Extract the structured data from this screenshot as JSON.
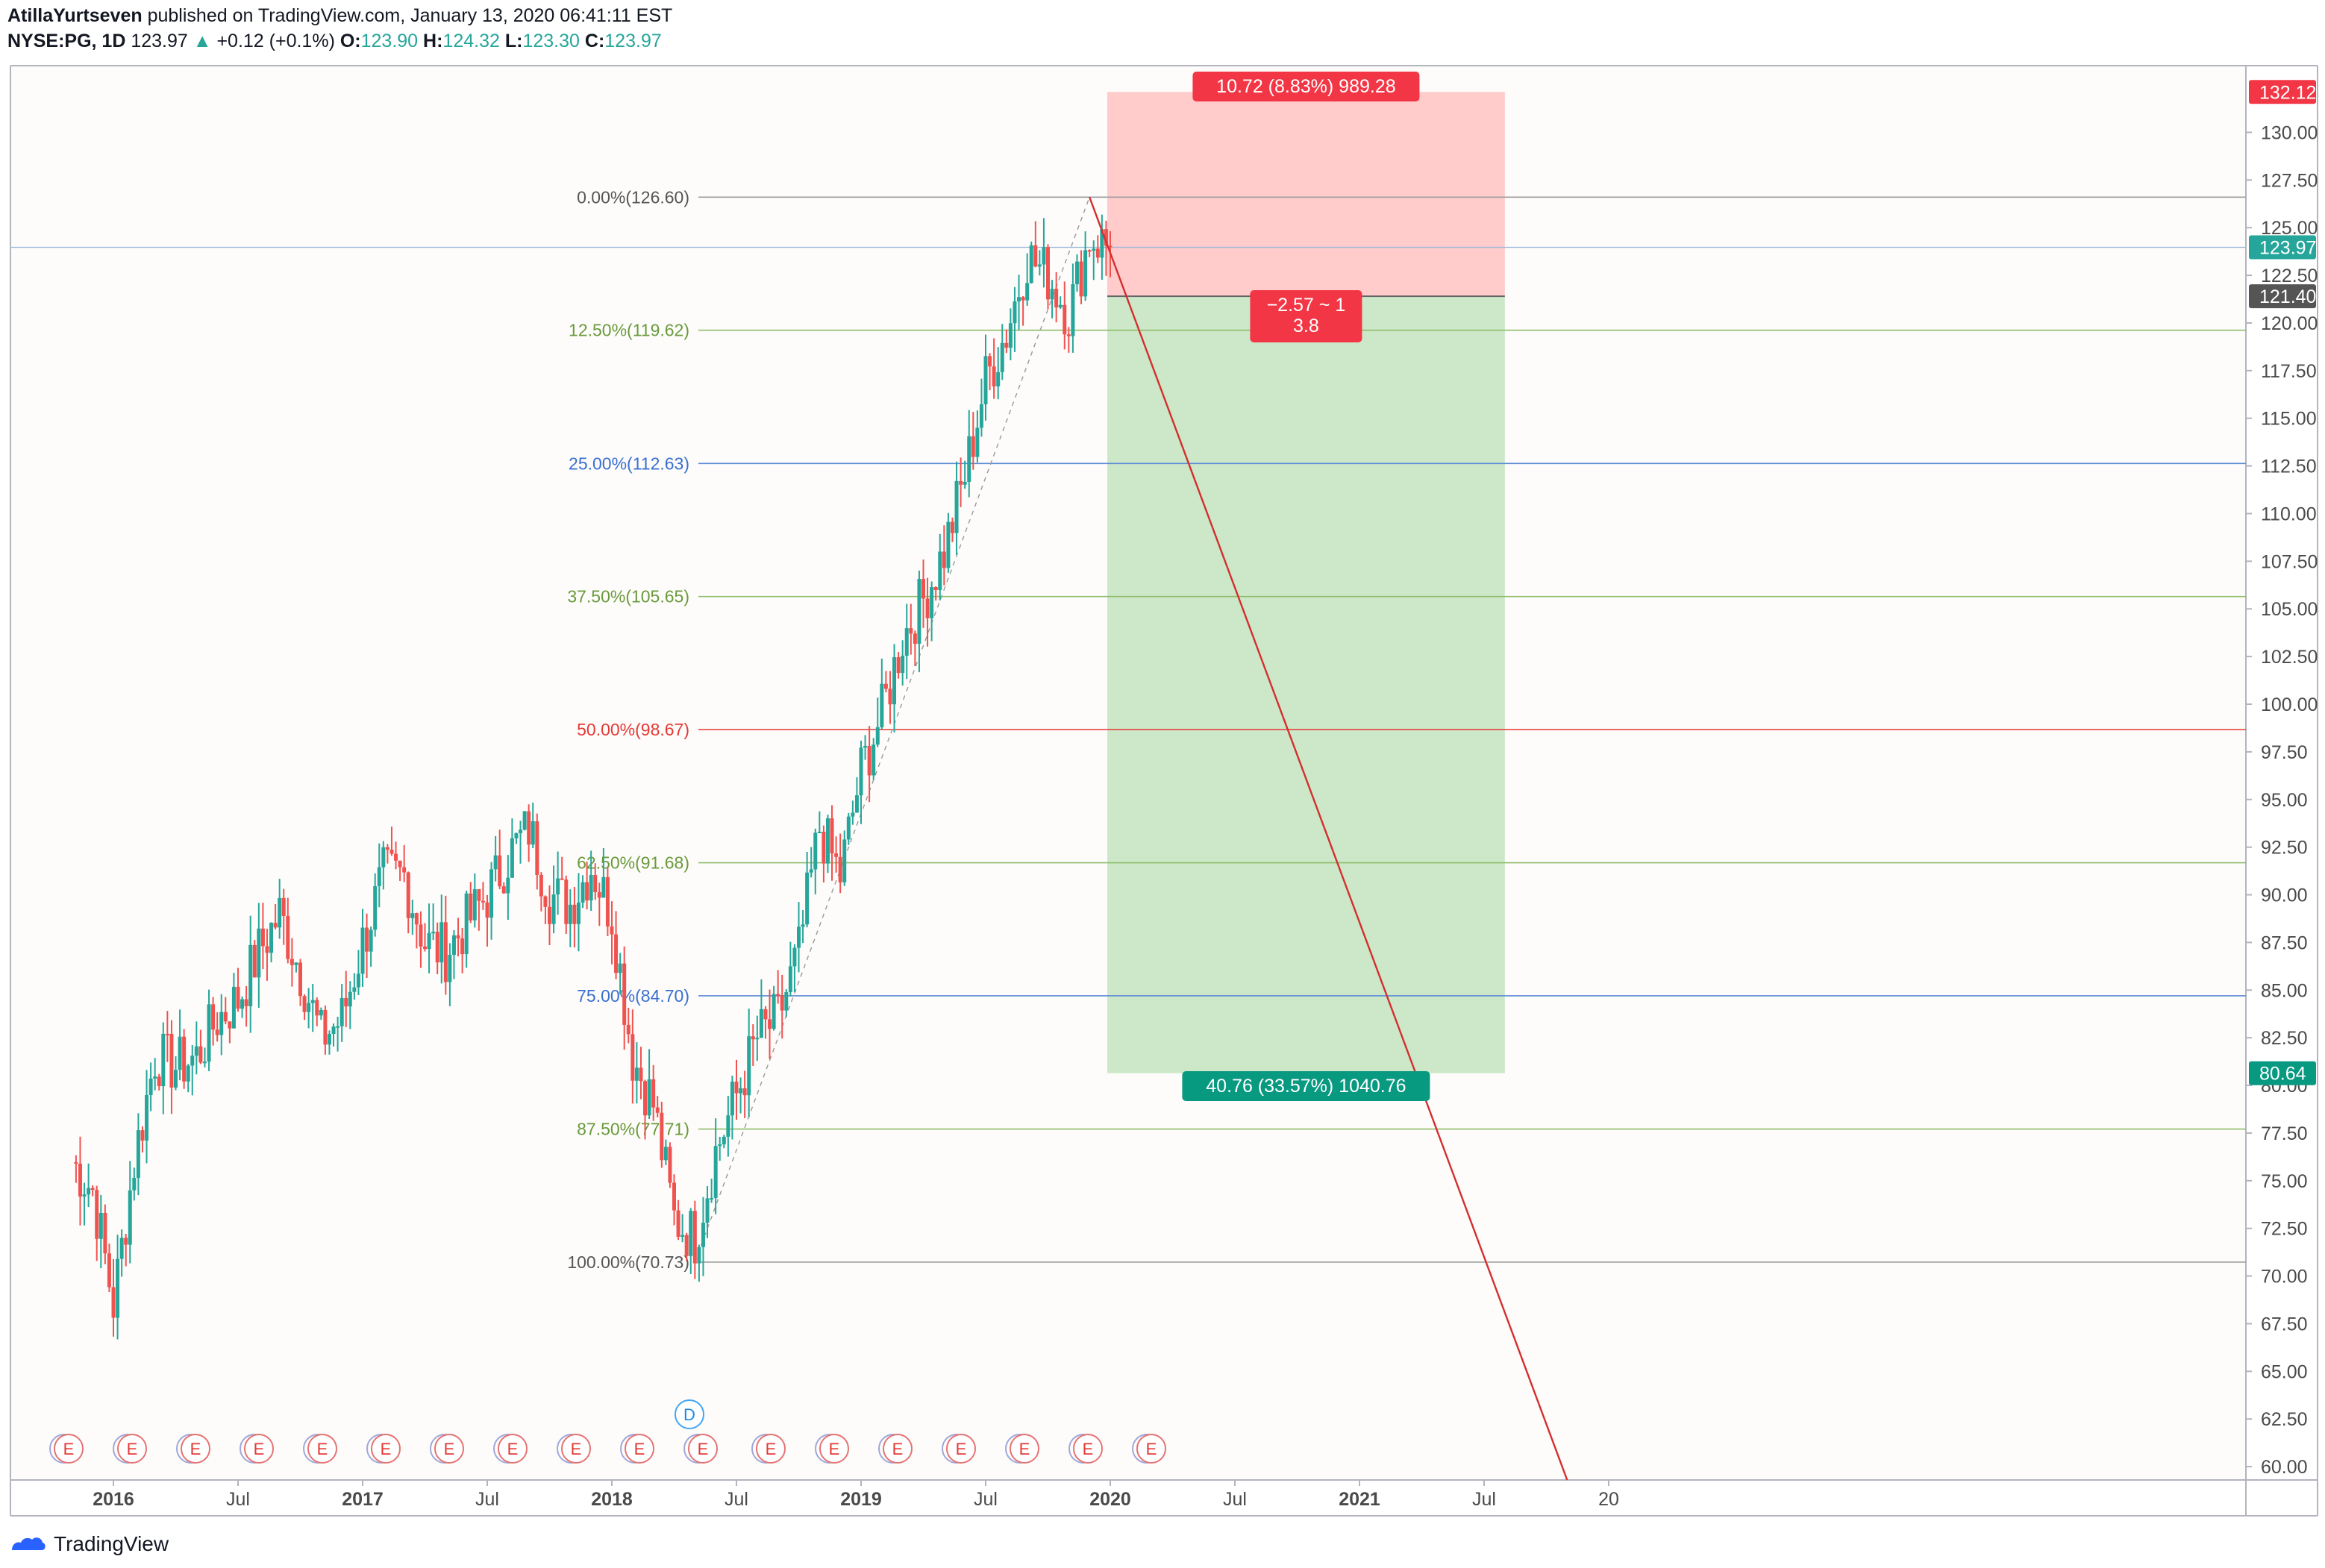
{
  "header": {
    "author": "AtillaYurtseven",
    "published_text": "published on TradingView.com, January 13, 2020 06:41:11 EST",
    "symbol": "NYSE:PG, 1D",
    "last": "123.97",
    "change": "+0.12 (+0.1%)",
    "o_label": "O:",
    "o": "123.90",
    "h_label": "H:",
    "h": "124.32",
    "l_label": "L:",
    "l": "123.30",
    "c_label": "C:",
    "c": "123.97"
  },
  "footer": {
    "brand": "TradingView"
  },
  "colors": {
    "up": "#26a69a",
    "down": "#ef5350",
    "background": "#fdfcfa",
    "stop_zone": "#ffcbcb",
    "target_zone": "#cce8c8",
    "grid_green": "#8fbc6a",
    "grid_blue": "#5b8bd6",
    "grid_red": "#e53935",
    "grid_gray": "#9e9e9e"
  },
  "chart_data": {
    "type": "line",
    "xlabels": [
      "2016",
      "Jul",
      "2017",
      "Jul",
      "2018",
      "Jul",
      "2019",
      "Jul",
      "2020",
      "Jul",
      "2021",
      "Jul",
      "20"
    ],
    "x_label_bold": [
      true,
      false,
      true,
      false,
      true,
      false,
      true,
      false,
      true,
      false,
      true,
      false,
      false
    ],
    "yticks": [
      "60.00",
      "62.50",
      "65.00",
      "67.50",
      "70.00",
      "72.50",
      "75.00",
      "77.50",
      "80.00",
      "82.50",
      "85.00",
      "87.50",
      "90.00",
      "92.50",
      "95.00",
      "97.50",
      "100.00",
      "102.50",
      "105.00",
      "107.50",
      "110.00",
      "112.50",
      "115.00",
      "117.50",
      "120.00",
      "122.50",
      "125.00",
      "127.50",
      "130.00"
    ],
    "ylim": [
      59.3,
      133.5
    ],
    "price_series": {
      "name": "NYSE:PG, 1D",
      "points": [
        [
          "2015-11",
          76.0
        ],
        [
          "2015-12",
          74.5
        ],
        [
          "2016-01",
          68.5
        ],
        [
          "2016-02",
          76.0
        ],
        [
          "2016-03",
          81.5
        ],
        [
          "2016-04",
          81.0
        ],
        [
          "2016-05",
          81.5
        ],
        [
          "2016-06",
          83.5
        ],
        [
          "2016-07",
          84.5
        ],
        [
          "2016-08",
          87.0
        ],
        [
          "2016-09",
          89.0
        ],
        [
          "2016-10",
          86.0
        ],
        [
          "2016-11",
          82.5
        ],
        [
          "2016-12",
          83.5
        ],
        [
          "2017-01",
          87.5
        ],
        [
          "2017-02",
          91.0
        ],
        [
          "2017-03",
          91.0
        ],
        [
          "2017-04",
          87.5
        ],
        [
          "2017-05",
          87.0
        ],
        [
          "2017-06",
          88.5
        ],
        [
          "2017-07",
          90.0
        ],
        [
          "2017-08",
          92.0
        ],
        [
          "2017-09",
          93.5
        ],
        [
          "2017-10",
          90.0
        ],
        [
          "2017-11",
          89.5
        ],
        [
          "2017-12",
          91.5
        ],
        [
          "2018-01",
          89.0
        ],
        [
          "2018-02",
          81.5
        ],
        [
          "2018-03",
          79.0
        ],
        [
          "2018-04",
          73.0
        ],
        [
          "2018-05",
          72.0
        ],
        [
          "2018-06",
          76.5
        ],
        [
          "2018-07",
          79.5
        ],
        [
          "2018-08",
          82.5
        ],
        [
          "2018-09",
          83.5
        ],
        [
          "2018-10",
          87.0
        ],
        [
          "2018-11",
          93.5
        ],
        [
          "2018-12",
          91.0
        ],
        [
          "2019-01",
          96.5
        ],
        [
          "2019-02",
          99.5
        ],
        [
          "2019-03",
          103.5
        ],
        [
          "2019-04",
          105.5
        ],
        [
          "2019-05",
          108.0
        ],
        [
          "2019-06",
          112.0
        ],
        [
          "2019-07",
          117.0
        ],
        [
          "2019-08",
          119.5
        ],
        [
          "2019-09",
          123.5
        ],
        [
          "2019-10",
          122.5
        ],
        [
          "2019-11",
          120.5
        ],
        [
          "2019-12",
          124.5
        ],
        [
          "2020-01",
          123.97
        ]
      ]
    },
    "fib_levels": [
      {
        "label": "0.00%(126.60)",
        "value": 126.6,
        "color": "gray"
      },
      {
        "label": "12.50%(119.62)",
        "value": 119.62,
        "color": "green"
      },
      {
        "label": "25.00%(112.63)",
        "value": 112.63,
        "color": "blue"
      },
      {
        "label": "37.50%(105.65)",
        "value": 105.65,
        "color": "green"
      },
      {
        "label": "50.00%(98.67)",
        "value": 98.67,
        "color": "red"
      },
      {
        "label": "62.50%(91.68)",
        "value": 91.68,
        "color": "green"
      },
      {
        "label": "75.00%(84.70)",
        "value": 84.7,
        "color": "blue"
      },
      {
        "label": "87.50%(77.71)",
        "value": 77.71,
        "color": "green"
      },
      {
        "label": "100.00%(70.73)",
        "value": 70.73,
        "color": "gray"
      }
    ],
    "position": {
      "entry": 121.4,
      "stop": 132.12,
      "target": 80.64,
      "start": "2020-01",
      "end": "2021-08",
      "stop_label": "10.72 (8.83%) 989.28",
      "target_label": "40.76 (33.57%) 1040.76",
      "ratio_line1": "−2.57 ~ 1",
      "ratio_line2": "3.8"
    },
    "trend_line": {
      "from": [
        "2019-12",
        126.6
      ],
      "to": [
        "2021-11",
        59.3
      ]
    },
    "price_tags": [
      {
        "text": "132.12",
        "value": 132.12,
        "bg": "#f23645"
      },
      {
        "text": "123.97",
        "value": 123.97,
        "bg": "#26a69a"
      },
      {
        "text": "121.40",
        "value": 121.4,
        "bg": "#555555"
      },
      {
        "text": "80.64",
        "value": 80.64,
        "bg": "#089981"
      }
    ],
    "events": {
      "dividend_label": "D",
      "earnings_label": "E",
      "earnings_count": 18
    }
  }
}
